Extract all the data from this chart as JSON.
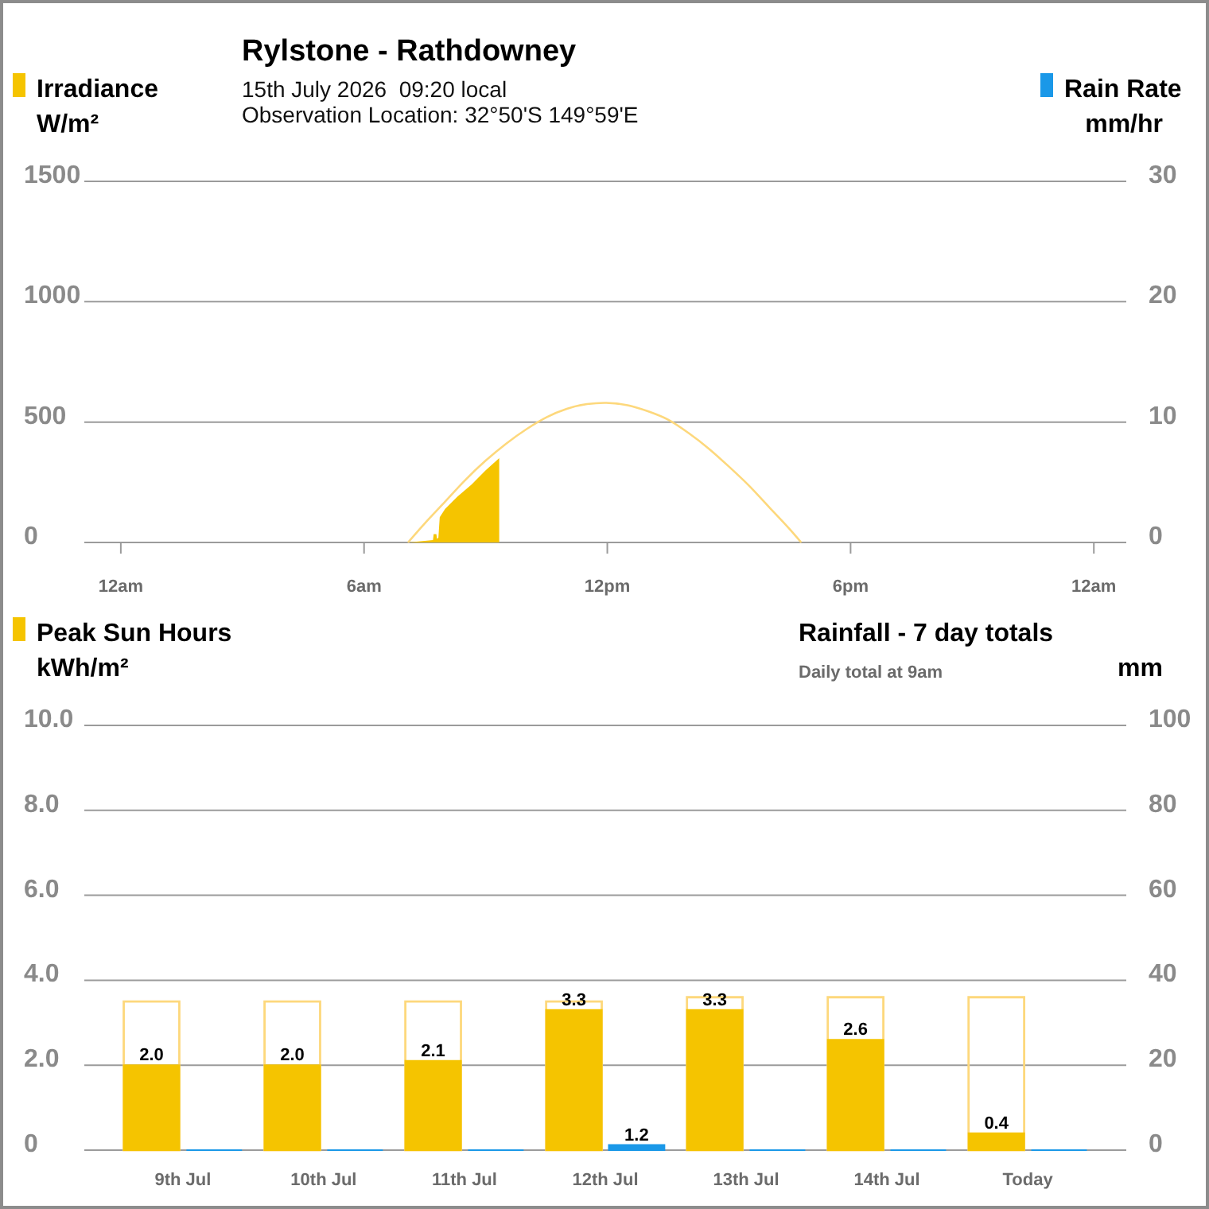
{
  "chart_data": [
    {
      "type": "area",
      "title": "Rylstone - Rathdowney",
      "subtitle": "15th July 2026  09:20 local",
      "annotations": [
        "Observation Location: 32°50'S 149°59'E"
      ],
      "ylabel": "W/m²",
      "y2label": "mm/hr",
      "legend": "top",
      "grid": "y",
      "xlim": [
        "2026-07-14T23:06",
        "2026-07-16T00:48"
      ],
      "xticks": [
        {
          "value": "2026-07-15T00:00",
          "label": "12am"
        },
        {
          "value": "2026-07-15T06:00",
          "label": "6am"
        },
        {
          "value": "2026-07-15T12:00",
          "label": "12pm"
        },
        {
          "value": "2026-07-15T18:00",
          "label": "6pm"
        },
        {
          "value": "2026-07-16T00:00",
          "label": "12am"
        }
      ],
      "ylim": [
        0,
        1500
      ],
      "yticks": [
        0,
        500,
        1000,
        1500
      ],
      "y2lim": [
        0,
        30
      ],
      "y2ticks": [
        0,
        10,
        20,
        30
      ],
      "series": [
        {
          "name": "Irradiance",
          "color": "#f5c400",
          "x": [
            "2026-07-15T07:05",
            "2026-07-15T07:24",
            "2026-07-15T07:42",
            "2026-07-15T07:43",
            "2026-07-15T07:47",
            "2026-07-15T07:48",
            "2026-07-15T07:50",
            "2026-07-15T07:52",
            "2026-07-15T08:00",
            "2026-07-15T08:18",
            "2026-07-15T08:39",
            "2026-07-15T09:00",
            "2026-07-15T09:20"
          ],
          "values": [
            0,
            5,
            10,
            35,
            35,
            15,
            20,
            105,
            140,
            190,
            240,
            300,
            350
          ]
        },
        {
          "type": "line",
          "color": "#fdd87c",
          "x": [
            "2026-07-15T07:05",
            "2026-07-15T07:30",
            "2026-07-15T08:00",
            "2026-07-15T08:30",
            "2026-07-15T09:00",
            "2026-07-15T09:30",
            "2026-07-15T10:00",
            "2026-07-15T10:30",
            "2026-07-15T11:00",
            "2026-07-15T11:30",
            "2026-07-15T11:56",
            "2026-07-15T12:30",
            "2026-07-15T13:00",
            "2026-07-15T13:30",
            "2026-07-15T14:00",
            "2026-07-15T14:30",
            "2026-07-15T15:00",
            "2026-07-15T15:30",
            "2026-07-15T16:00",
            "2026-07-15T16:30",
            "2026-07-15T16:47"
          ],
          "values": [
            0,
            80,
            170,
            260,
            340,
            410,
            470,
            520,
            555,
            575,
            580,
            570,
            545,
            510,
            455,
            390,
            315,
            235,
            145,
            55,
            0
          ]
        },
        {
          "name": "Rain Rate",
          "type": "bar",
          "axis": "y2",
          "color": "#1a98e8"
        }
      ]
    },
    {
      "type": "bar",
      "title": "Rainfall - 7 day totals",
      "annotations": [
        "Daily total at 9am"
      ],
      "ylabel": "kWh/m²",
      "y2label": "mm",
      "legend": "top",
      "grid": "y",
      "categories": [
        "9th Jul",
        "10th Jul",
        "11th Jul",
        "12th Jul",
        "13th Jul",
        "14th Jul",
        "Today"
      ],
      "ylim": [
        0,
        10
      ],
      "yticks": [
        0,
        {
          "value": 2,
          "label": "2.0"
        },
        {
          "value": 4,
          "label": "4.0"
        },
        {
          "value": 6,
          "label": "6.0"
        },
        {
          "value": 8,
          "label": "8.0"
        },
        {
          "value": 10,
          "label": "10.0"
        }
      ],
      "y2lim": [
        0,
        100
      ],
      "y2ticks": [
        0,
        20,
        40,
        60,
        80,
        100
      ],
      "series": [
        {
          "color": "#fdd87c",
          "line_style": "solid",
          "values": [
            3.5,
            3.5,
            3.5,
            3.5,
            3.6,
            3.6,
            3.6
          ]
        },
        {
          "name": "Peak Sun Hours",
          "color": "#f5c400",
          "values": [
            2.0,
            2.0,
            2.1,
            3.3,
            3.3,
            2.6,
            0.4
          ],
          "value_labels": [
            "2.0",
            "2.0",
            "2.1",
            "3.3",
            "3.3",
            "2.6",
            "0.4"
          ]
        },
        {
          "color": "#1a98e8",
          "axis": "y2",
          "values": [
            0,
            0,
            0,
            1.2,
            0,
            0,
            0
          ],
          "value_labels": [
            null,
            null,
            null,
            "1.2",
            null,
            null,
            null
          ]
        }
      ]
    }
  ]
}
